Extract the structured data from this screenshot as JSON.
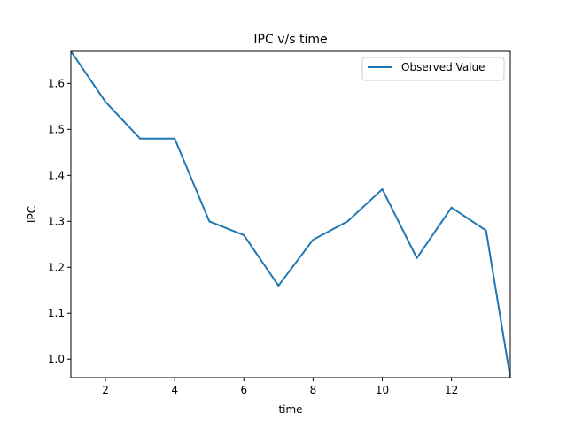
{
  "chart_data": {
    "type": "line",
    "title": "IPC v/s time",
    "xlabel": "time",
    "ylabel": "IPC",
    "x": [
      1,
      2,
      3,
      4,
      5,
      6,
      7,
      8,
      9,
      10,
      11,
      12,
      13,
      13.7
    ],
    "series": [
      {
        "name": "Observed Value",
        "color": "#1f77b4",
        "values": [
          1.67,
          1.56,
          1.48,
          1.48,
          1.3,
          1.27,
          1.16,
          1.26,
          1.3,
          1.37,
          1.22,
          1.33,
          1.28,
          0.96
        ]
      }
    ],
    "xlim": [
      1,
      13.7
    ],
    "ylim": [
      0.96,
      1.67
    ],
    "xticks": [
      2,
      4,
      6,
      8,
      10,
      12
    ],
    "yticks": [
      1.0,
      1.1,
      1.2,
      1.3,
      1.4,
      1.5,
      1.6
    ],
    "xtick_labels": [
      "2",
      "4",
      "6",
      "8",
      "10",
      "12"
    ],
    "ytick_labels": [
      "1.0",
      "1.1",
      "1.2",
      "1.3",
      "1.4",
      "1.5",
      "1.6"
    ],
    "grid": false,
    "legend_position": "top-right"
  }
}
